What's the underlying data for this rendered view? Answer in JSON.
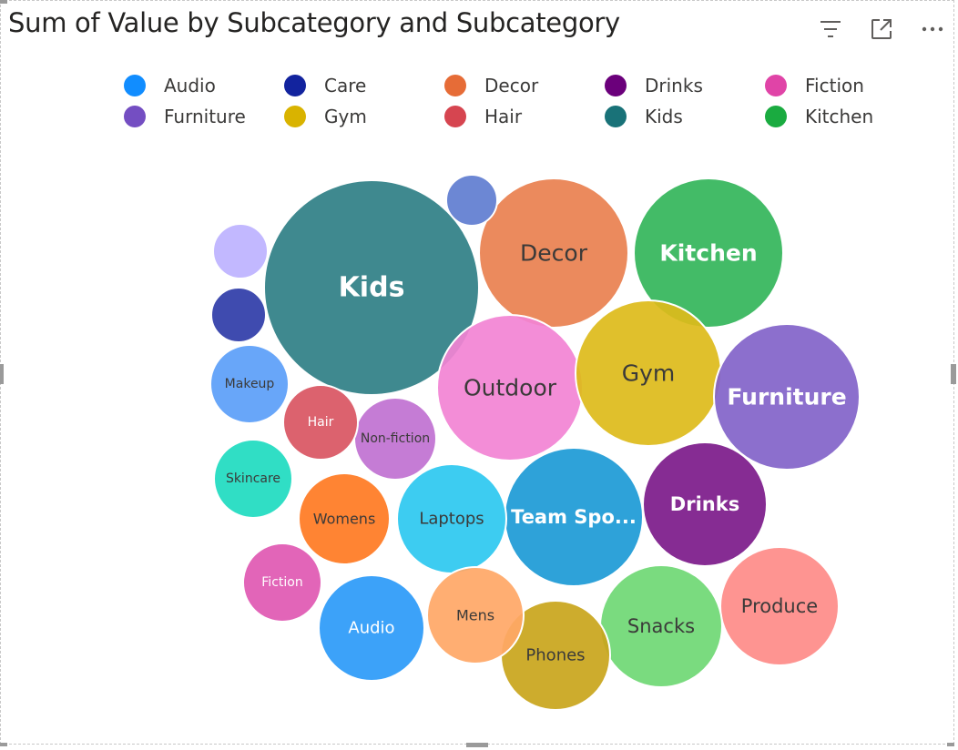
{
  "title": "Sum of Value by Subcategory and Subcategory",
  "toolbar": {
    "filter_icon": "filter-icon",
    "focus_icon": "focus-mode-icon",
    "more_icon": "more-options-icon"
  },
  "legend": [
    {
      "label": "Audio",
      "color": "#118DFF"
    },
    {
      "label": "Care",
      "color": "#12239E"
    },
    {
      "label": "Decor",
      "color": "#E66C37"
    },
    {
      "label": "Drinks",
      "color": "#6B007B"
    },
    {
      "label": "Fiction",
      "color": "#E044A7"
    },
    {
      "label": "Furniture",
      "color": "#744EC2"
    },
    {
      "label": "Gym",
      "color": "#D9B300"
    },
    {
      "label": "Hair",
      "color": "#D64550"
    },
    {
      "label": "Kids",
      "color": "#197278"
    },
    {
      "label": "Kitchen",
      "color": "#1AAB40"
    }
  ],
  "chart_data": {
    "type": "bubble",
    "title": "Sum of Value by Subcategory and Subcategory",
    "legend_position": "top",
    "series": [
      {
        "name": "Kids",
        "label": "Kids",
        "value": 100,
        "color": "#2F7F85",
        "text_color": "#ffffff"
      },
      {
        "name": "Decor",
        "label": "Decor",
        "value": 47,
        "color": "#E9804F",
        "text_color": "#3b3a39"
      },
      {
        "name": "Kitchen",
        "label": "Kitchen",
        "value": 47,
        "color": "#33B55A",
        "text_color": "#ffffff"
      },
      {
        "name": "Outdoor",
        "label": "Outdoor",
        "value": 46,
        "color": "#F283D4",
        "text_color": "#3b3a39"
      },
      {
        "name": "Gym",
        "label": "Gym",
        "value": 45,
        "color": "#DDBB1A",
        "text_color": "#3b3a39"
      },
      {
        "name": "Furniture",
        "label": "Furniture",
        "value": 45,
        "color": "#8263C9",
        "text_color": "#ffffff"
      },
      {
        "name": "Team Sports",
        "label": "Team Spo...",
        "value": 42,
        "color": "#1C9AD6",
        "text_color": "#ffffff"
      },
      {
        "name": "Drinks",
        "label": "Drinks",
        "value": 33,
        "color": "#7C1A8A",
        "text_color": "#ffffff"
      },
      {
        "name": "Produce",
        "label": "Produce",
        "value": 30,
        "color": "#FE8B88",
        "text_color": "#3b3a39"
      },
      {
        "name": "Snacks",
        "label": "Snacks",
        "value": 32,
        "color": "#6FD874",
        "text_color": "#3b3a39"
      },
      {
        "name": "Phones",
        "label": "Phones",
        "value": 26,
        "color": "#C9A51B",
        "text_color": "#3b3a39"
      },
      {
        "name": "Laptops",
        "label": "Laptops",
        "value": 26,
        "color": "#2DC8F0",
        "text_color": "#3b3a39"
      },
      {
        "name": "Audio",
        "label": "Audio",
        "value": 24,
        "color": "#2B9AF8",
        "text_color": "#ffffff"
      },
      {
        "name": "Mens",
        "label": "Mens",
        "value": 20,
        "color": "#FFA766",
        "text_color": "#3b3a39"
      },
      {
        "name": "Womens",
        "label": "Womens",
        "value": 18,
        "color": "#FF7A22",
        "text_color": "#3b3a39"
      },
      {
        "name": "Non-fiction",
        "label": "Non-fiction",
        "value": 15,
        "color": "#C071D1",
        "text_color": "#3b3a39"
      },
      {
        "name": "Makeup",
        "label": "Makeup",
        "value": 13,
        "color": "#5B9EF8",
        "text_color": "#3b3a39"
      },
      {
        "name": "Skincare",
        "label": "Skincare",
        "value": 13,
        "color": "#1EDBC0",
        "text_color": "#3b3a39"
      },
      {
        "name": "Fiction",
        "label": "Fiction",
        "value": 13,
        "color": "#E058B2",
        "text_color": "#ffffff"
      },
      {
        "name": "Hair",
        "label": "Hair",
        "value": 12,
        "color": "#D95562",
        "text_color": "#ffffff"
      },
      {
        "name": "Care",
        "label": "",
        "value": 6,
        "color": "#2F3CA8",
        "text_color": "#ffffff"
      },
      {
        "name": "Other-lavender",
        "label": "",
        "value": 6,
        "color": "#BDB2FF",
        "text_color": "#ffffff"
      },
      {
        "name": "Other-blue",
        "label": "",
        "value": 5,
        "color": "#5F7DD0",
        "text_color": "#ffffff"
      }
    ]
  }
}
